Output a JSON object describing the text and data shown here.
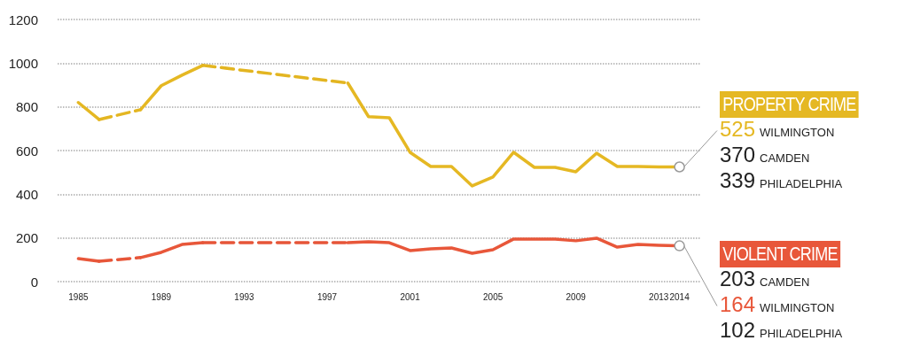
{
  "chart_data": {
    "type": "line",
    "x": [
      1985,
      1986,
      1987,
      1988,
      1989,
      1990,
      1991,
      1992,
      1993,
      1994,
      1995,
      1996,
      1997,
      1998,
      1999,
      2000,
      2001,
      2002,
      2003,
      2004,
      2005,
      2006,
      2007,
      2008,
      2009,
      2010,
      2011,
      2012,
      2013,
      2014
    ],
    "series": [
      {
        "name": "PROPERTY CRIME",
        "color": "#e5b823",
        "values": [
          820,
          742,
          null,
          787,
          897,
          945,
          990,
          null,
          null,
          null,
          null,
          null,
          null,
          909,
          755,
          750,
          592,
          527,
          527,
          438,
          479,
          592,
          523,
          523,
          503,
          588,
          527,
          527,
          525,
          525
        ]
      },
      {
        "color": "#e4b622",
        "line_style": "dashed",
        "x": [
          1986,
          1988
        ],
        "values": [
          742,
          787
        ]
      },
      {
        "color": "#e3b521",
        "line_style": "dashed",
        "x": [
          1991,
          1998
        ],
        "values": [
          990,
          909
        ]
      },
      {
        "name": "VIOLENT CRIME",
        "color": "#e8573a",
        "values": [
          105,
          93,
          null,
          110,
          134,
          170,
          178,
          null,
          null,
          null,
          null,
          null,
          null,
          178,
          182,
          178,
          142,
          150,
          154,
          130,
          146,
          195,
          195,
          195,
          187,
          199,
          158,
          170,
          166,
          164
        ]
      },
      {
        "color": "#e75639",
        "line_style": "dashed",
        "x": [
          1986,
          1988
        ],
        "values": [
          93,
          110
        ]
      },
      {
        "color": "#e65538",
        "line_style": "dashed",
        "x": [
          1991,
          1998
        ],
        "values": [
          178,
          178
        ]
      }
    ],
    "xlim": [
      1984,
      2015
    ],
    "xticks": [
      1985,
      1989,
      1993,
      1997,
      2001,
      2005,
      2009,
      2013,
      2014
    ],
    "ylim": [
      0,
      1200
    ],
    "yticks": [
      0,
      200,
      400,
      600,
      800,
      1000,
      1200
    ],
    "grid": "y",
    "line_style": "solid",
    "annotations": [
      {
        "text": "525 WILMINGTON",
        "x": 2014,
        "y": 525
      },
      "370 CAMDEN",
      "339 PHILADELPHIA",
      "203 CAMDEN",
      {
        "text": "164 WILMINGTON",
        "x": 2014,
        "y": 164
      },
      "102 PHILADELPHIA"
    ]
  }
}
